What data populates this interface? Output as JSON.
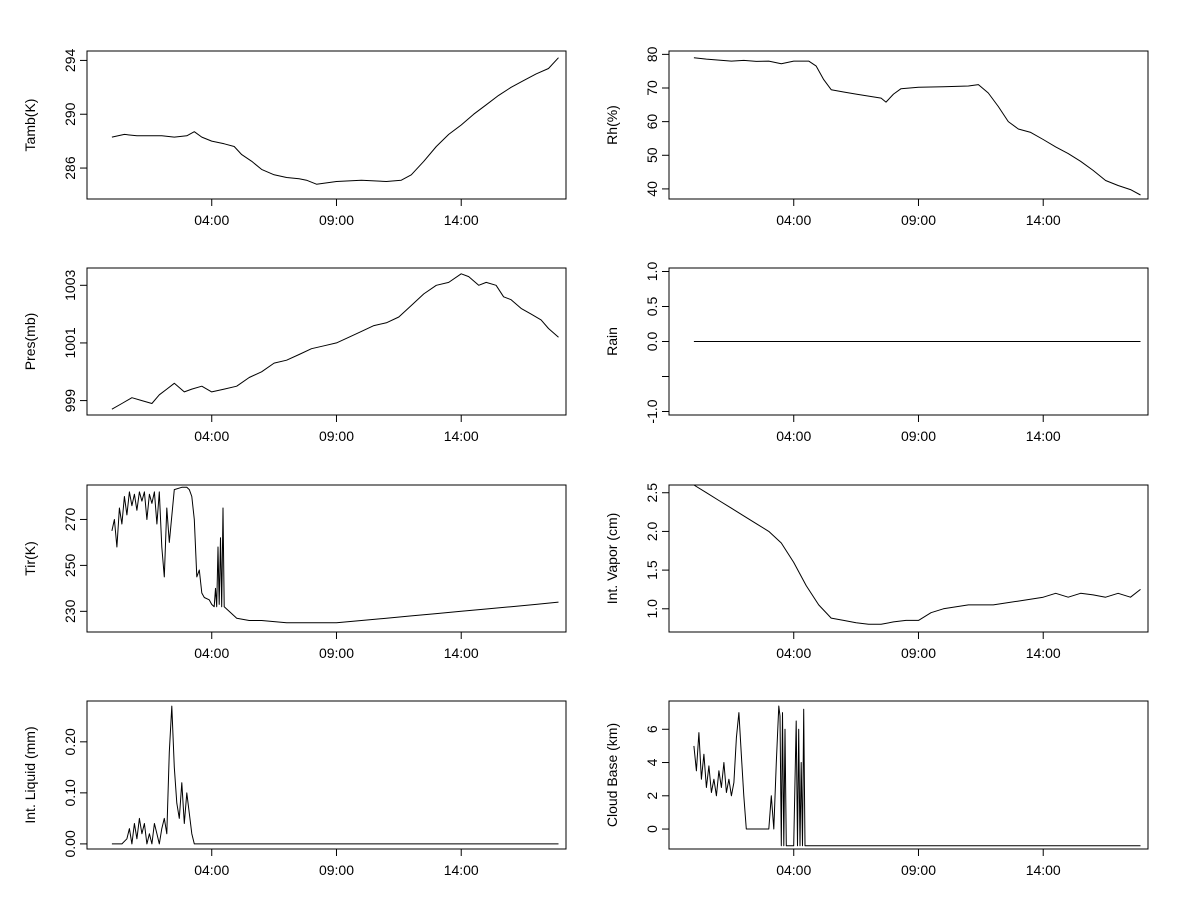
{
  "x_axis": {
    "type": "time",
    "range_hours": [
      -1.0,
      18.2
    ],
    "ticks": [
      {
        "hour": 4,
        "label": "04:00"
      },
      {
        "hour": 9,
        "label": "09:00"
      },
      {
        "hour": 14,
        "label": "14:00"
      }
    ]
  },
  "chart_data": [
    {
      "type": "line",
      "ylabel": "Tamb(K)",
      "ylim": [
        283.7,
        294.7
      ],
      "yticks": [
        286,
        290,
        294
      ],
      "yticklabels": [
        "286",
        "290",
        "294"
      ],
      "x": [
        0.0,
        0.5,
        1.0,
        1.5,
        2.0,
        2.5,
        3.0,
        3.3,
        3.6,
        4.0,
        4.5,
        4.9,
        5.2,
        5.6,
        6.0,
        6.5,
        7.0,
        7.5,
        7.8,
        8.2,
        9.0,
        10.0,
        11.0,
        11.6,
        12.0,
        12.5,
        13.0,
        13.5,
        14.0,
        14.5,
        15.0,
        15.5,
        16.0,
        16.5,
        17.0,
        17.5,
        17.9
      ],
      "values": [
        288.3,
        288.5,
        288.4,
        288.4,
        288.4,
        288.3,
        288.4,
        288.7,
        288.3,
        288.0,
        287.8,
        287.6,
        287.0,
        286.5,
        285.9,
        285.5,
        285.3,
        285.2,
        285.1,
        284.8,
        285.0,
        285.1,
        285.0,
        285.1,
        285.5,
        286.5,
        287.6,
        288.5,
        289.2,
        290.0,
        290.7,
        291.4,
        292.0,
        292.5,
        293.0,
        293.4,
        294.2
      ]
    },
    {
      "type": "line",
      "ylabel": "Rh(%)",
      "ylim": [
        37,
        81
      ],
      "yticks": [
        40,
        50,
        60,
        70,
        80
      ],
      "yticklabels": [
        "40",
        "50",
        "60",
        "70",
        "80"
      ],
      "x": [
        0.0,
        0.5,
        1.0,
        1.5,
        2.0,
        2.5,
        3.0,
        3.5,
        4.0,
        4.6,
        4.9,
        5.2,
        5.5,
        6.0,
        6.5,
        7.0,
        7.5,
        7.7,
        8.0,
        8.3,
        9.0,
        10.0,
        11.0,
        11.4,
        11.8,
        12.2,
        12.6,
        13.0,
        13.5,
        14.0,
        14.5,
        15.0,
        15.5,
        16.0,
        16.5,
        17.0,
        17.5,
        17.9
      ],
      "values": [
        79,
        78.6,
        78.3,
        78.0,
        78.2,
        77.9,
        78.0,
        77.2,
        78.0,
        78.0,
        76.5,
        72.5,
        69.5,
        68.8,
        68.2,
        67.6,
        67.0,
        65.8,
        68.2,
        69.8,
        70.2,
        70.4,
        70.6,
        71.0,
        68.5,
        64.5,
        60.0,
        57.8,
        56.8,
        54.7,
        52.5,
        50.5,
        48.2,
        45.5,
        42.5,
        41.0,
        39.8,
        38.2
      ]
    },
    {
      "type": "line",
      "ylabel": "Pres(mb)",
      "ylim": [
        998.5,
        1003.6
      ],
      "yticks": [
        999,
        1001,
        1003
      ],
      "yticklabels": [
        "999",
        "1001",
        "1003"
      ],
      "x": [
        0.0,
        0.4,
        0.8,
        1.2,
        1.6,
        1.9,
        2.2,
        2.5,
        2.9,
        3.2,
        3.6,
        4.0,
        4.5,
        5.0,
        5.5,
        6.0,
        6.5,
        7.0,
        7.5,
        8.0,
        8.5,
        9.0,
        9.5,
        10.0,
        10.5,
        11.0,
        11.5,
        12.0,
        12.5,
        13.0,
        13.5,
        14.0,
        14.3,
        14.7,
        15.0,
        15.4,
        15.7,
        16.0,
        16.4,
        16.8,
        17.2,
        17.5,
        17.9
      ],
      "values": [
        998.7,
        998.9,
        999.1,
        999.0,
        998.9,
        999.2,
        999.4,
        999.6,
        999.3,
        999.4,
        999.5,
        999.3,
        999.4,
        999.5,
        999.8,
        1000.0,
        1000.3,
        1000.4,
        1000.6,
        1000.8,
        1000.9,
        1001.0,
        1001.2,
        1001.4,
        1001.6,
        1001.7,
        1001.9,
        1002.3,
        1002.7,
        1003.0,
        1003.1,
        1003.4,
        1003.3,
        1003.0,
        1003.1,
        1003.0,
        1002.6,
        1002.5,
        1002.2,
        1002.0,
        1001.8,
        1001.5,
        1001.2
      ]
    },
    {
      "type": "line",
      "ylabel": "Rain",
      "ylim": [
        -1.05,
        1.05
      ],
      "yticks": [
        -1.0,
        -0.5,
        0.0,
        0.5,
        1.0
      ],
      "yticklabels": [
        "-1.0",
        "",
        "0.0",
        "0.5",
        "1.0"
      ],
      "x": [
        0.0,
        17.9
      ],
      "values": [
        0.0,
        0.0
      ]
    },
    {
      "type": "line",
      "ylabel": "Tir(K)",
      "ylim": [
        221,
        285
      ],
      "yticks": [
        230,
        250,
        270
      ],
      "yticklabels": [
        "230",
        "250",
        "270"
      ],
      "x": [
        0.0,
        0.1,
        0.2,
        0.3,
        0.4,
        0.5,
        0.6,
        0.7,
        0.8,
        0.9,
        1.0,
        1.1,
        1.2,
        1.3,
        1.4,
        1.5,
        1.6,
        1.7,
        1.8,
        1.9,
        2.0,
        2.1,
        2.2,
        2.3,
        2.5,
        2.8,
        3.0,
        3.1,
        3.2,
        3.3,
        3.4,
        3.5,
        3.6,
        3.7,
        3.9,
        4.0,
        4.1,
        4.15,
        4.2,
        4.25,
        4.3,
        4.35,
        4.4,
        4.45,
        4.5,
        4.8,
        5.0,
        5.5,
        6.0,
        7.0,
        8.0,
        9.0,
        10.0,
        11.0,
        12.0,
        13.0,
        14.0,
        15.0,
        16.0,
        17.0,
        17.9
      ],
      "values": [
        265,
        270,
        258,
        275,
        268,
        280,
        272,
        282,
        276,
        281,
        274,
        282,
        278,
        282,
        270,
        281,
        277,
        282,
        268,
        282,
        258,
        245,
        275,
        260,
        283,
        284,
        284,
        283,
        280,
        270,
        245,
        248,
        238,
        236,
        235,
        233,
        232,
        240,
        232,
        258,
        233,
        262,
        232,
        275,
        232,
        229,
        227,
        226,
        226,
        225,
        225,
        225,
        226,
        227,
        228,
        229,
        230,
        231,
        232,
        233,
        234
      ]
    },
    {
      "type": "line",
      "ylabel": "Int. Vapor (cm)",
      "ylim": [
        0.7,
        2.6
      ],
      "yticks": [
        1.0,
        1.5,
        2.0,
        2.5
      ],
      "yticklabels": [
        "1.0",
        "1.5",
        "2.0",
        "2.5"
      ],
      "x": [
        0.0,
        0.5,
        1.0,
        1.5,
        2.0,
        2.5,
        3.0,
        3.5,
        4.0,
        4.5,
        5.0,
        5.5,
        6.0,
        6.5,
        7.0,
        7.5,
        8.0,
        8.5,
        9.0,
        9.5,
        10.0,
        11.0,
        12.0,
        13.0,
        14.0,
        14.5,
        15.0,
        15.5,
        16.0,
        16.5,
        17.0,
        17.5,
        17.9
      ],
      "values": [
        2.6,
        2.5,
        2.4,
        2.3,
        2.2,
        2.1,
        2.0,
        1.85,
        1.6,
        1.3,
        1.05,
        0.88,
        0.85,
        0.82,
        0.8,
        0.8,
        0.83,
        0.85,
        0.85,
        0.95,
        1.0,
        1.05,
        1.05,
        1.1,
        1.15,
        1.2,
        1.15,
        1.2,
        1.18,
        1.15,
        1.2,
        1.15,
        1.25
      ]
    },
    {
      "type": "line",
      "ylabel": "Int. Liquid (mm)",
      "ylim": [
        -0.01,
        0.28
      ],
      "yticks": [
        0.0,
        0.1,
        0.2
      ],
      "yticklabels": [
        "0.00",
        "0.10",
        "0.20"
      ],
      "x": [
        0.0,
        0.4,
        0.6,
        0.7,
        0.8,
        0.9,
        1.0,
        1.1,
        1.2,
        1.3,
        1.4,
        1.5,
        1.6,
        1.7,
        1.8,
        1.9,
        2.0,
        2.1,
        2.2,
        2.3,
        2.4,
        2.5,
        2.6,
        2.7,
        2.8,
        2.9,
        3.0,
        3.1,
        3.2,
        3.3,
        3.4,
        17.9
      ],
      "values": [
        0.0,
        0.0,
        0.01,
        0.03,
        0.0,
        0.04,
        0.01,
        0.05,
        0.02,
        0.04,
        0.0,
        0.02,
        0.0,
        0.04,
        0.02,
        0.0,
        0.03,
        0.05,
        0.02,
        0.18,
        0.27,
        0.15,
        0.08,
        0.05,
        0.12,
        0.04,
        0.1,
        0.06,
        0.02,
        0.0,
        0.0,
        0.0
      ]
    },
    {
      "type": "line",
      "ylabel": "Cloud Base (km)",
      "ylim": [
        -1.2,
        7.7
      ],
      "yticks": [
        0,
        2,
        4,
        6
      ],
      "yticklabels": [
        "0",
        "2",
        "4",
        "6"
      ],
      "x": [
        0.0,
        0.1,
        0.2,
        0.3,
        0.4,
        0.5,
        0.6,
        0.7,
        0.8,
        0.9,
        1.0,
        1.1,
        1.2,
        1.3,
        1.4,
        1.5,
        1.6,
        1.7,
        1.8,
        1.9,
        2.0,
        2.1,
        2.2,
        2.3,
        2.5,
        2.8,
        3.0,
        3.1,
        3.2,
        3.3,
        3.4,
        3.45,
        3.5,
        3.55,
        3.6,
        3.65,
        3.7,
        3.75,
        4.0,
        4.1,
        4.15,
        4.2,
        4.25,
        4.3,
        4.35,
        4.4,
        4.45,
        4.5,
        17.9
      ],
      "values": [
        5.0,
        3.5,
        5.8,
        3.0,
        4.5,
        2.5,
        3.8,
        2.2,
        3.0,
        2.0,
        3.5,
        2.5,
        4.0,
        2.2,
        3.0,
        2.0,
        2.8,
        5.5,
        7.0,
        4.5,
        2.0,
        0.0,
        0.0,
        0.0,
        0.0,
        0.0,
        0.0,
        2.0,
        0.0,
        4.0,
        7.4,
        6.8,
        -1.0,
        7.0,
        -1.0,
        6.0,
        -1.0,
        -1.0,
        -1.0,
        6.5,
        -1.0,
        6.0,
        -1.0,
        4.0,
        -1.0,
        7.2,
        -1.0,
        -1.0,
        -1.0
      ]
    }
  ]
}
